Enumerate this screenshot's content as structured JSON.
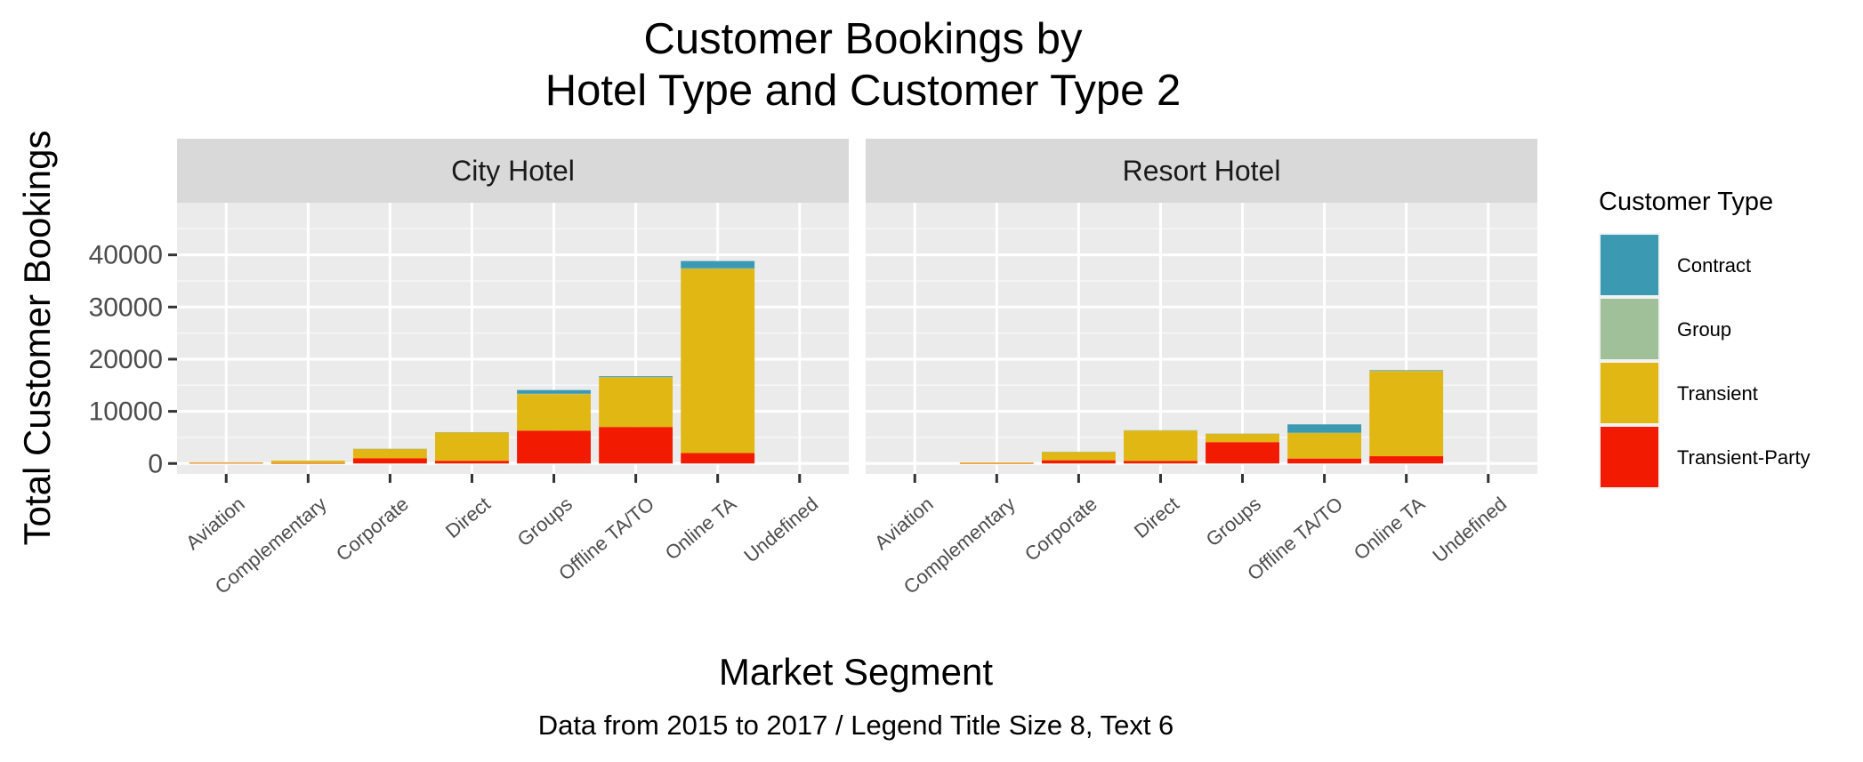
{
  "chart_data": {
    "type": "bar",
    "stacked": true,
    "title": [
      "Customer Bookings by",
      "Hotel Type and Customer Type 2"
    ],
    "xlabel": "Market Segment",
    "ylabel": "Total Customer Bookings",
    "caption": "Data from 2015 to 2017 / Legend Title Size 8, Text 6",
    "ylim": [
      -2000,
      50000
    ],
    "yticks": [
      0,
      10000,
      20000,
      30000,
      40000
    ],
    "ytick_labels": [
      "0",
      "10000",
      "20000",
      "30000",
      "40000"
    ],
    "categories": [
      "Aviation",
      "Complementary",
      "Corporate",
      "Direct",
      "Groups",
      "Offline TA/TO",
      "Online TA",
      "Undefined"
    ],
    "legend": {
      "title": "Customer Type",
      "position": "right",
      "entries": [
        {
          "name": "Contract",
          "color": "#3b9ab2"
        },
        {
          "name": "Group",
          "color": "#a0c099"
        },
        {
          "name": "Transient",
          "color": "#e1b714"
        },
        {
          "name": "Transient-Party",
          "color": "#f21a00"
        }
      ]
    },
    "stack_order_bottom_to_top": [
      "Transient-Party",
      "Transient",
      "Group",
      "Contract"
    ],
    "panels": [
      {
        "name": "City Hotel",
        "series": [
          {
            "name": "Contract",
            "values": [
              0,
              0,
              0,
              0,
              700,
              150,
              1400,
              0
            ]
          },
          {
            "name": "Group",
            "values": [
              0,
              0,
              20,
              100,
              80,
              80,
              120,
              0
            ]
          },
          {
            "name": "Transient",
            "values": [
              150,
              500,
              1800,
              5400,
              7000,
              9500,
              35300,
              0
            ]
          },
          {
            "name": "Transient-Party",
            "values": [
              80,
              40,
              1000,
              520,
              6300,
              7000,
              2000,
              0
            ]
          }
        ]
      },
      {
        "name": "Resort Hotel",
        "series": [
          {
            "name": "Contract",
            "values": [
              0,
              0,
              0,
              0,
              0,
              1600,
              100,
              0
            ]
          },
          {
            "name": "Group",
            "values": [
              0,
              0,
              20,
              90,
              40,
              50,
              100,
              0
            ]
          },
          {
            "name": "Transient",
            "values": [
              0,
              180,
              1600,
              5800,
              1600,
              4900,
              16300,
              0
            ]
          },
          {
            "name": "Transient-Party",
            "values": [
              0,
              20,
              620,
              500,
              4100,
              950,
              1400,
              0
            ]
          }
        ]
      }
    ]
  }
}
